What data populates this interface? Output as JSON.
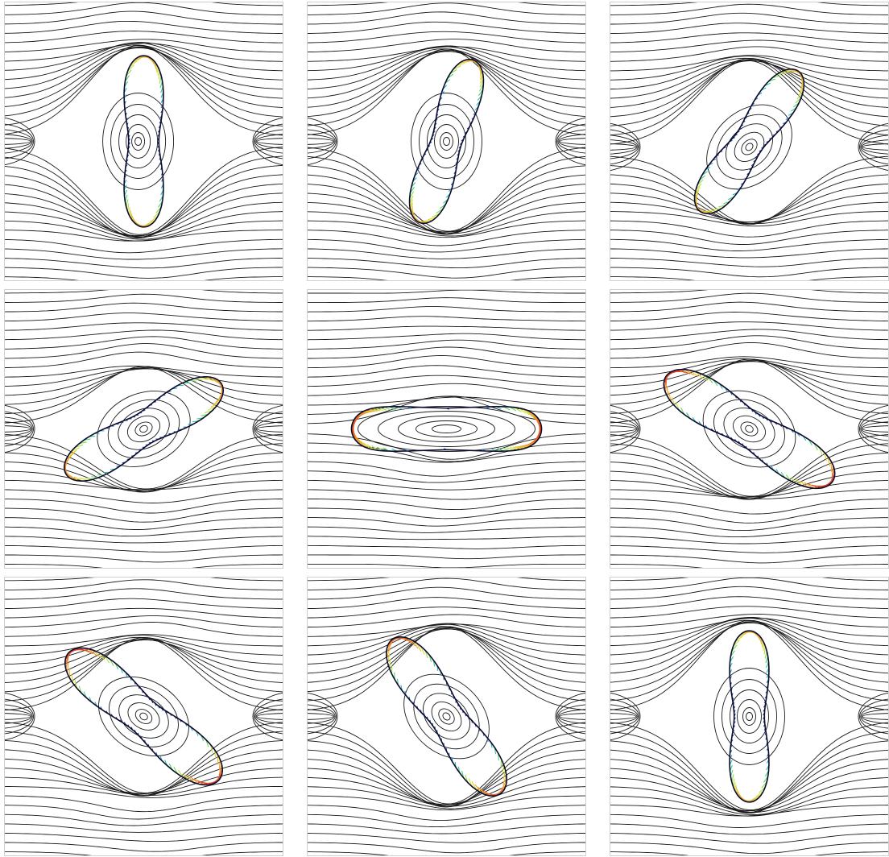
{
  "figure": {
    "layout": {
      "rows": 3,
      "cols": 3
    },
    "panels": [
      {
        "id": "r1c1",
        "row": 1,
        "col": 1,
        "shape": "bilobed",
        "rotation_deg": -90,
        "elongation": 1.0,
        "mirror": false,
        "eddy_center": [
          0.48,
          0.5
        ]
      },
      {
        "id": "r1c2",
        "row": 1,
        "col": 2,
        "shape": "bilobed",
        "rotation_deg": -72,
        "elongation": 1.0,
        "mirror": false,
        "eddy_center": [
          0.5,
          0.5
        ]
      },
      {
        "id": "r1c3",
        "row": 1,
        "col": 3,
        "shape": "bilobed",
        "rotation_deg": -55,
        "elongation": 1.0,
        "mirror": false,
        "eddy_center": [
          0.5,
          0.52
        ]
      },
      {
        "id": "r2c1",
        "row": 2,
        "col": 1,
        "shape": "bilobed",
        "rotation_deg": -30,
        "elongation": 1.05,
        "mirror": false,
        "eddy_center": [
          0.5,
          0.5
        ]
      },
      {
        "id": "r2c2",
        "row": 2,
        "col": 2,
        "shape": "flat",
        "rotation_deg": 0,
        "elongation": 1.0,
        "mirror": false,
        "eddy_center": [
          0.5,
          0.5
        ]
      },
      {
        "id": "r2c3",
        "row": 2,
        "col": 3,
        "shape": "bilobed",
        "rotation_deg": 32,
        "elongation": 1.15,
        "mirror": true,
        "eddy_center": [
          0.5,
          0.5
        ]
      },
      {
        "id": "r3c1",
        "row": 3,
        "col": 1,
        "shape": "bilobed",
        "rotation_deg": 40,
        "elongation": 1.15,
        "mirror": true,
        "eddy_center": [
          0.5,
          0.5
        ]
      },
      {
        "id": "r3c2",
        "row": 3,
        "col": 2,
        "shape": "bilobed",
        "rotation_deg": 55,
        "elongation": 1.1,
        "mirror": true,
        "eddy_center": [
          0.5,
          0.5
        ]
      },
      {
        "id": "r3c3",
        "row": 3,
        "col": 3,
        "shape": "bilobed",
        "rotation_deg": 90,
        "elongation": 1.0,
        "mirror": true,
        "eddy_center": [
          0.5,
          0.5
        ]
      }
    ],
    "colors": {
      "streamline": "#1a1a1a",
      "membrane": "#0b0b2a",
      "velocity_scale": [
        "#1f3fbf",
        "#1fb0e0",
        "#3fd86a",
        "#d6e63a",
        "#f59b25",
        "#d62020"
      ]
    }
  }
}
